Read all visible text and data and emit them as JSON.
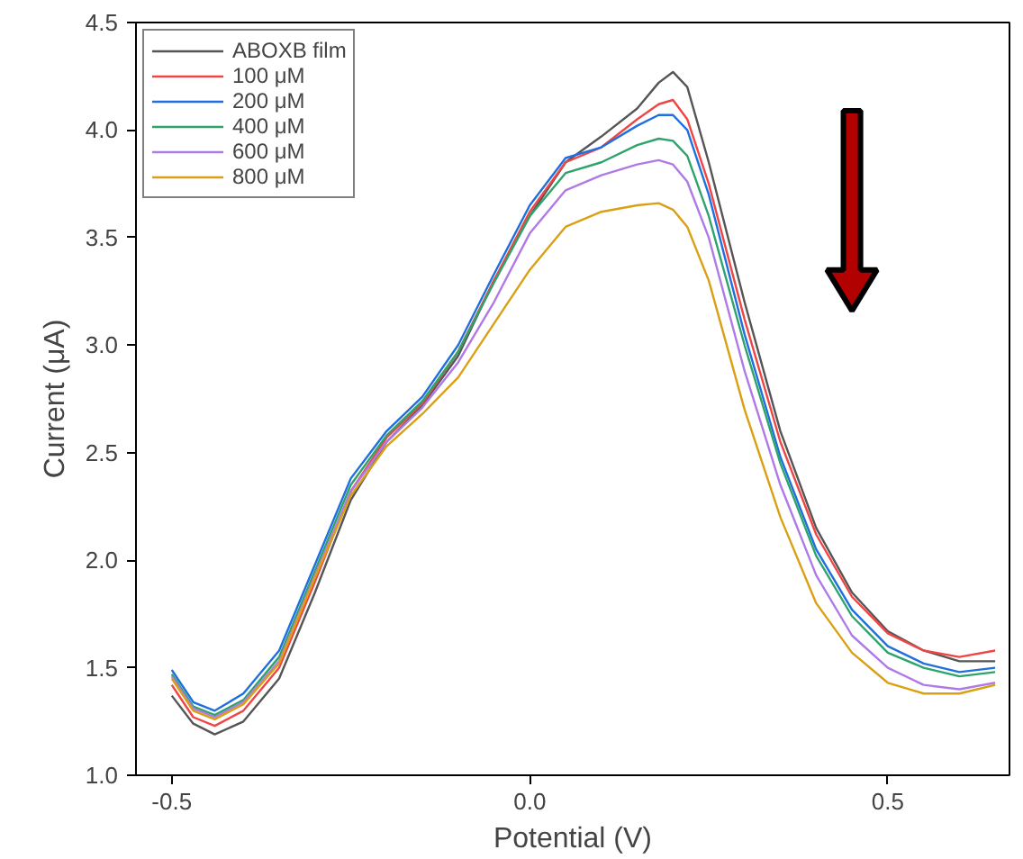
{
  "chart_data": {
    "type": "line",
    "xlabel": "Potential (V)",
    "ylabel": "Current (μA)",
    "x": [
      -0.5,
      -0.47,
      -0.44,
      -0.4,
      -0.35,
      -0.3,
      -0.25,
      -0.2,
      -0.15,
      -0.1,
      -0.05,
      0.0,
      0.05,
      0.1,
      0.15,
      0.18,
      0.2,
      0.22,
      0.25,
      0.3,
      0.35,
      0.4,
      0.45,
      0.5,
      0.55,
      0.6,
      0.65
    ],
    "series": [
      {
        "name": "ABOXB film",
        "color": "#555555",
        "values": [
          1.37,
          1.24,
          1.19,
          1.25,
          1.45,
          1.85,
          2.28,
          2.55,
          2.72,
          2.95,
          3.3,
          3.6,
          3.85,
          3.97,
          4.1,
          4.22,
          4.27,
          4.2,
          3.85,
          3.2,
          2.6,
          2.15,
          1.85,
          1.67,
          1.58,
          1.53,
          1.53
        ]
      },
      {
        "name": "100 μM",
        "color": "#f04545",
        "values": [
          1.42,
          1.27,
          1.23,
          1.3,
          1.5,
          1.9,
          2.32,
          2.57,
          2.73,
          2.97,
          3.3,
          3.62,
          3.85,
          3.92,
          4.05,
          4.12,
          4.14,
          4.05,
          3.75,
          3.12,
          2.55,
          2.12,
          1.83,
          1.66,
          1.58,
          1.55,
          1.58
        ]
      },
      {
        "name": "200 μM",
        "color": "#1f6fe0",
        "values": [
          1.49,
          1.34,
          1.3,
          1.38,
          1.58,
          1.98,
          2.38,
          2.6,
          2.76,
          3.0,
          3.33,
          3.65,
          3.87,
          3.92,
          4.02,
          4.07,
          4.07,
          4.0,
          3.7,
          3.05,
          2.48,
          2.05,
          1.77,
          1.6,
          1.52,
          1.48,
          1.5
        ]
      },
      {
        "name": "400 μM",
        "color": "#2ea36b",
        "values": [
          1.47,
          1.32,
          1.28,
          1.35,
          1.55,
          1.95,
          2.35,
          2.58,
          2.74,
          2.97,
          3.29,
          3.6,
          3.8,
          3.85,
          3.93,
          3.96,
          3.95,
          3.88,
          3.6,
          3.0,
          2.45,
          2.02,
          1.74,
          1.57,
          1.5,
          1.46,
          1.48
        ]
      },
      {
        "name": "600 μM",
        "color": "#b07ae6",
        "values": [
          1.46,
          1.31,
          1.27,
          1.34,
          1.53,
          1.93,
          2.32,
          2.55,
          2.71,
          2.92,
          3.2,
          3.52,
          3.72,
          3.79,
          3.84,
          3.86,
          3.84,
          3.76,
          3.5,
          2.88,
          2.35,
          1.93,
          1.65,
          1.5,
          1.42,
          1.4,
          1.43
        ]
      },
      {
        "name": "800 μM",
        "color": "#daa014",
        "values": [
          1.45,
          1.3,
          1.26,
          1.33,
          1.52,
          1.92,
          2.3,
          2.53,
          2.68,
          2.85,
          3.1,
          3.35,
          3.55,
          3.62,
          3.65,
          3.66,
          3.63,
          3.55,
          3.3,
          2.7,
          2.2,
          1.8,
          1.57,
          1.43,
          1.38,
          1.38,
          1.42
        ]
      }
    ],
    "xlim": [
      -0.55,
      0.67
    ],
    "ylim": [
      1.0,
      4.5
    ],
    "xticks": [
      {
        "value": -0.5,
        "label": "-0.5"
      },
      {
        "value": 0,
        "label": "0.0"
      },
      {
        "value": 0.5,
        "label": "0.5"
      }
    ],
    "yticks": [
      {
        "value": 1,
        "label": "1.0"
      },
      1.5,
      {
        "value": 2,
        "label": "2.0"
      },
      2.5,
      {
        "value": 3,
        "label": "3.0"
      },
      3.5,
      {
        "value": 4,
        "label": "4.0"
      },
      4.5
    ],
    "legend": "top left",
    "grid": false,
    "marker": "none",
    "line_style": "solid"
  }
}
